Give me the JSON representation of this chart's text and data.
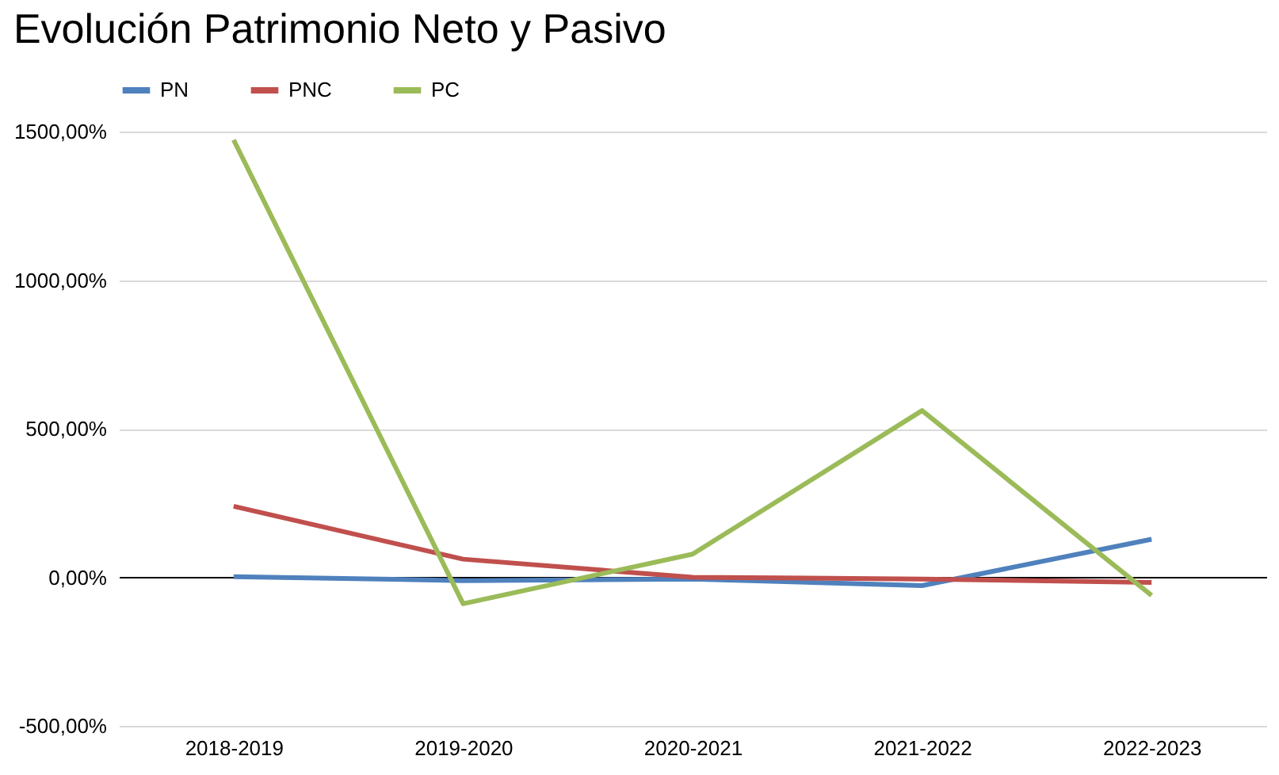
{
  "chart_data": {
    "type": "line",
    "title": "Evolución Patrimonio Neto y Pasivo",
    "categories": [
      "2018-2019",
      "2019-2020",
      "2020-2021",
      "2021-2022",
      "2022-2023"
    ],
    "series": [
      {
        "name": "PN",
        "color": "#4f81bd",
        "values": [
          2,
          -11,
          -6,
          -28,
          128
        ]
      },
      {
        "name": "PNC",
        "color": "#c0504d",
        "values": [
          239,
          61,
          0,
          -6,
          -17
        ]
      },
      {
        "name": "PC",
        "color": "#9bbb59",
        "values": [
          1472,
          -89,
          78,
          561,
          -61
        ]
      }
    ],
    "ylim": [
      -500,
      1500
    ],
    "yticks": [
      {
        "value": -500,
        "label": "-500,00%"
      },
      {
        "value": 0,
        "label": "0,00%"
      },
      {
        "value": 500,
        "label": "500,00%"
      },
      {
        "value": 1000,
        "label": "1000,00%"
      },
      {
        "value": 1500,
        "label": "1500,00%"
      }
    ],
    "grid": "y",
    "legend": "top",
    "marker": "none",
    "line_style": "solid"
  }
}
